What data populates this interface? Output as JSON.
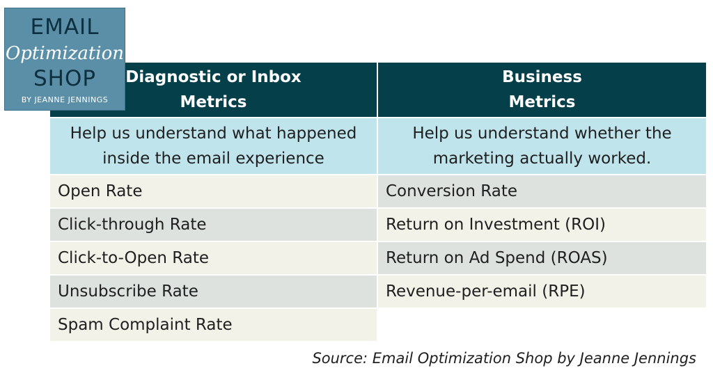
{
  "logo": {
    "line1": "EMAIL",
    "line2": "Optimization",
    "line3": "SHOP",
    "line4": "BY JEANNE JENNINGS"
  },
  "table": {
    "headers": [
      "Diagnostic or Inbox\nMetrics",
      "Business\nMetrics"
    ],
    "descriptions": [
      "Help us understand what happened\ninside the email experience",
      "Help us understand whether the\nmarketing actually worked."
    ],
    "rows": [
      [
        "Open Rate",
        "Conversion Rate"
      ],
      [
        "Click-through Rate",
        "Return on Investment (ROI)"
      ],
      [
        "Click-to-Open Rate",
        "Return on Ad Spend (ROAS)"
      ],
      [
        "Unsubscribe Rate",
        "Revenue-per-email (RPE)"
      ],
      [
        "Spam Complaint Rate",
        ""
      ]
    ]
  },
  "source": "Source: Email Optimization Shop by Jeanne Jennings",
  "colors": {
    "header_bg": "#053f4a",
    "description_bg": "#bfe4ec",
    "row_cream": "#f3f2e8",
    "row_grey": "#dde2de",
    "logo_bg": "#5b8fa8"
  }
}
